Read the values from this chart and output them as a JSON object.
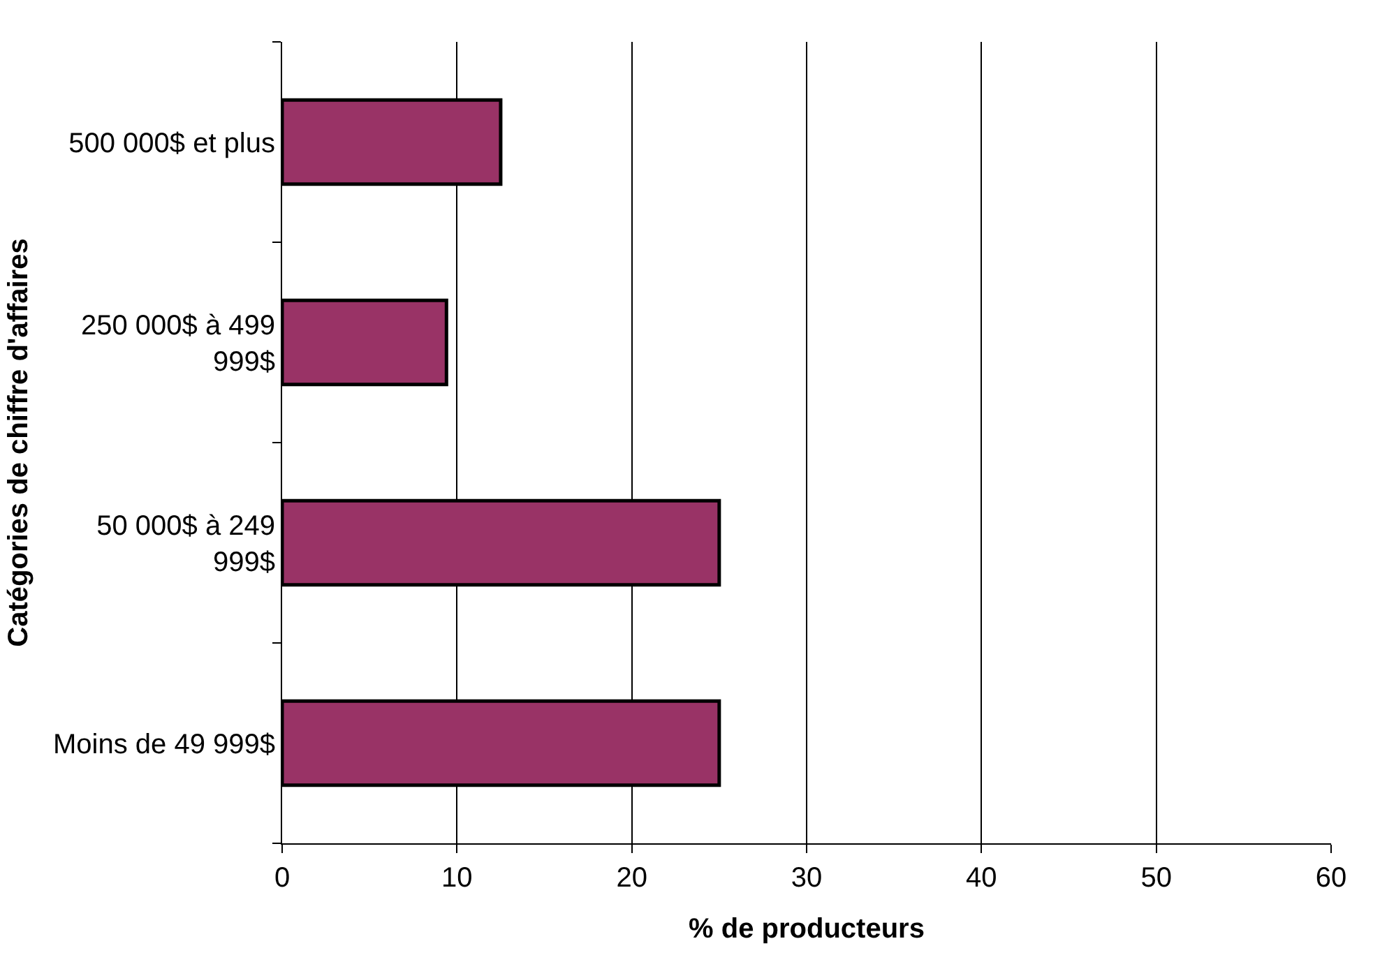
{
  "chart_data": {
    "type": "bar",
    "orientation": "horizontal",
    "xlabel": "% de producteurs",
    "ylabel": "Catégories de chiffre d'affaires",
    "categories": [
      "500 000$ et plus",
      "250 000$ à 499 999$",
      "50 000$ à 249 999$",
      "Moins de 49 999$"
    ],
    "values": [
      12.5,
      9.4,
      25,
      25
    ],
    "color": "#993366",
    "xlim": [
      0,
      60
    ],
    "xticks": [
      0,
      10,
      20,
      30,
      40,
      50,
      60
    ],
    "grid": "x"
  }
}
